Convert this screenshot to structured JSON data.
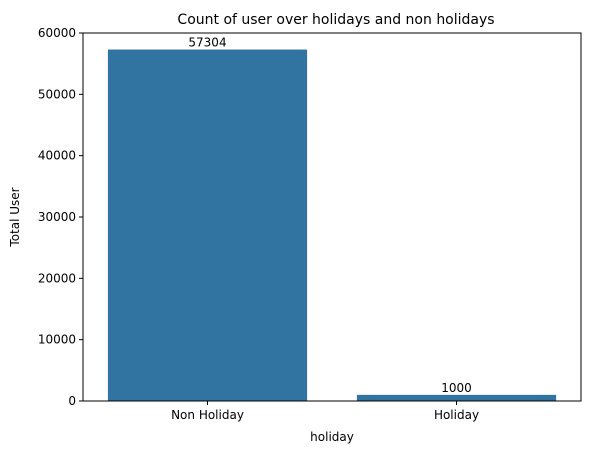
{
  "chart_data": {
    "type": "bar",
    "title": "Count of user over holidays and non holidays",
    "xlabel": "holiday",
    "ylabel": "Total User",
    "categories": [
      "Non Holiday",
      "Holiday"
    ],
    "values": [
      57304,
      1000
    ],
    "data_labels": [
      "57304",
      "1000"
    ],
    "ylim": [
      0,
      60000
    ],
    "yticks": [
      0,
      10000,
      20000,
      30000,
      40000,
      50000,
      60000
    ],
    "ytick_labels": [
      "0",
      "10000",
      "20000",
      "30000",
      "40000",
      "50000",
      "60000"
    ],
    "bar_color": "#3274a1",
    "grid": false
  }
}
